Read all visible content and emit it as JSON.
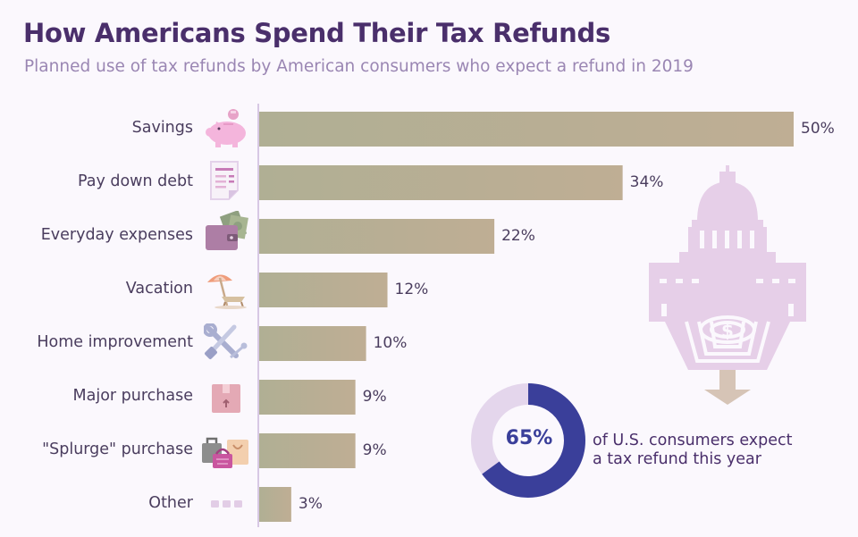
{
  "title": "How Americans Spend Their Tax Refunds",
  "subtitle": "Planned use of tax refunds by American consumers who expect a refund in 2019",
  "chart_data": {
    "type": "bar",
    "orientation": "horizontal",
    "categories": [
      "Savings",
      "Pay down debt",
      "Everyday expenses",
      "Vacation",
      "Home improvement",
      "Major purchase",
      "\"Splurge\" purchase",
      "Other"
    ],
    "values": [
      50,
      34,
      22,
      12,
      10,
      9,
      9,
      3
    ],
    "value_labels": [
      "50%",
      "34%",
      "22%",
      "12%",
      "10%",
      "9%",
      "9%",
      "3%"
    ],
    "unit": "%",
    "xlim": [
      0,
      50
    ],
    "icons": [
      "piggy-bank-icon",
      "bill-document-icon",
      "wallet-cash-icon",
      "beach-umbrella-icon",
      "tools-icon",
      "package-box-icon",
      "shopping-bags-icon",
      "ellipsis-icon"
    ]
  },
  "donut": {
    "value": 65,
    "label": "65%",
    "text_line1": "of U.S. consumers expect",
    "text_line2": "a tax refund this year"
  },
  "colors": {
    "bar_start": "#b0af94",
    "bar_end": "#bfae94",
    "title": "#4a2f6b",
    "subtitle": "#9a86b3",
    "donut_fill": "#3a3f9a",
    "donut_track": "#e4d6ec",
    "capitol": "#e6cfe8",
    "arrow": "#d6c4b6"
  }
}
